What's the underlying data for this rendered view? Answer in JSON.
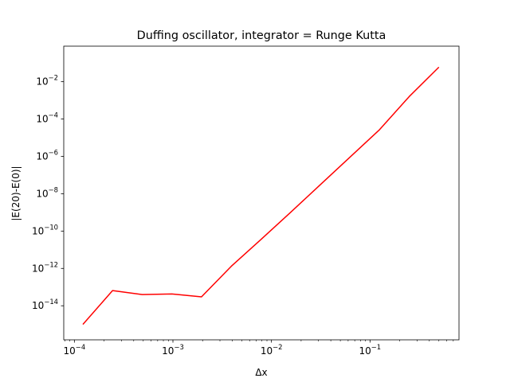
{
  "chart_data": {
    "type": "line",
    "title": "Duffing oscillator, integrator = Runge Kutta",
    "xlabel": "Δx",
    "ylabel": "|E(20)-E(0)|",
    "xscale": "log",
    "yscale": "log",
    "xlim": [
      7.8e-05,
      0.8
    ],
    "ylim": [
      1.5e-16,
      0.8
    ],
    "grid": false,
    "legend": "none",
    "line_color": "#ff0000",
    "x_ticks": [
      {
        "value": 0.0001,
        "base": "10",
        "exp": "−4"
      },
      {
        "value": 0.001,
        "base": "10",
        "exp": "−3"
      },
      {
        "value": 0.01,
        "base": "10",
        "exp": "−2"
      },
      {
        "value": 0.1,
        "base": "10",
        "exp": "−1"
      }
    ],
    "y_ticks": [
      {
        "value": 1e-14,
        "base": "10",
        "exp": "−14"
      },
      {
        "value": 1e-12,
        "base": "10",
        "exp": "−12"
      },
      {
        "value": 1e-10,
        "base": "10",
        "exp": "−10"
      },
      {
        "value": 1e-08,
        "base": "10",
        "exp": "−8"
      },
      {
        "value": 1e-06,
        "base": "10",
        "exp": "−6"
      },
      {
        "value": 0.0001,
        "base": "10",
        "exp": "−4"
      },
      {
        "value": 0.01,
        "base": "10",
        "exp": "−2"
      }
    ],
    "series": [
      {
        "x": [
          0.000122,
          0.000244,
          0.000488,
          0.000977,
          0.00195,
          0.00391,
          0.0078,
          0.0156,
          0.03125,
          0.0625,
          0.125,
          0.25,
          0.5
        ],
        "y": [
          1e-15,
          6.5e-14,
          4e-14,
          4.3e-14,
          3e-14,
          1.3e-12,
          3.5e-11,
          1e-09,
          3e-08,
          9e-07,
          2.7e-05,
          0.0016,
          0.06
        ]
      }
    ]
  }
}
